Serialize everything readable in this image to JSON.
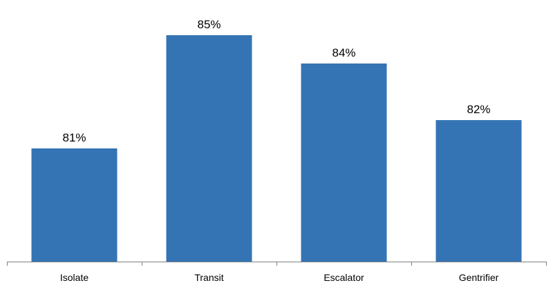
{
  "chart_data": {
    "type": "bar",
    "categories": [
      "Isolate",
      "Transit",
      "Escalator",
      "Gentrifier"
    ],
    "values": [
      81,
      85,
      84,
      82
    ],
    "data_labels": [
      "81%",
      "85%",
      "84%",
      "82%"
    ],
    "ylim": [
      77,
      86
    ],
    "grid": false,
    "legend": "none",
    "bar_color": "#3474B4"
  }
}
